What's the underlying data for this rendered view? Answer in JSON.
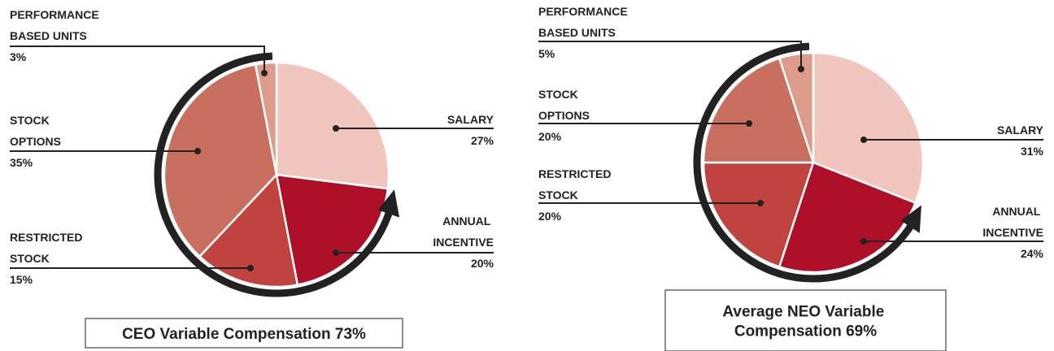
{
  "chart_data": [
    {
      "type": "pie",
      "categories": [
        "SALARY",
        "ANNUAL INCENTIVE",
        "RESTRICTED STOCK",
        "STOCK OPTIONS",
        "PERFORMANCE BASED UNITS"
      ],
      "values": [
        27,
        20,
        15,
        35,
        3
      ],
      "value_labels": [
        "27%",
        "20%",
        "15%",
        "35%",
        "3%"
      ],
      "colors": [
        "#f0c6bf",
        "#ad1028",
        "#c0433f",
        "#c86f60",
        "#dd9b8c"
      ],
      "annotation": "CEO Variable Compensation 73%"
    },
    {
      "type": "pie",
      "categories": [
        "SALARY",
        "ANNUAL INCENTIVE",
        "RESTRICTED STOCK",
        "STOCK OPTIONS",
        "PERFORMANCE BASED UNITS"
      ],
      "values": [
        31,
        24,
        20,
        20,
        5
      ],
      "value_labels": [
        "31%",
        "24%",
        "20%",
        "20%",
        "5%"
      ],
      "colors": [
        "#f0c6bf",
        "#ad1028",
        "#c0433f",
        "#c86f60",
        "#dd9b8c"
      ],
      "annotation": "Average NEO Variable Compensation 69%"
    }
  ]
}
